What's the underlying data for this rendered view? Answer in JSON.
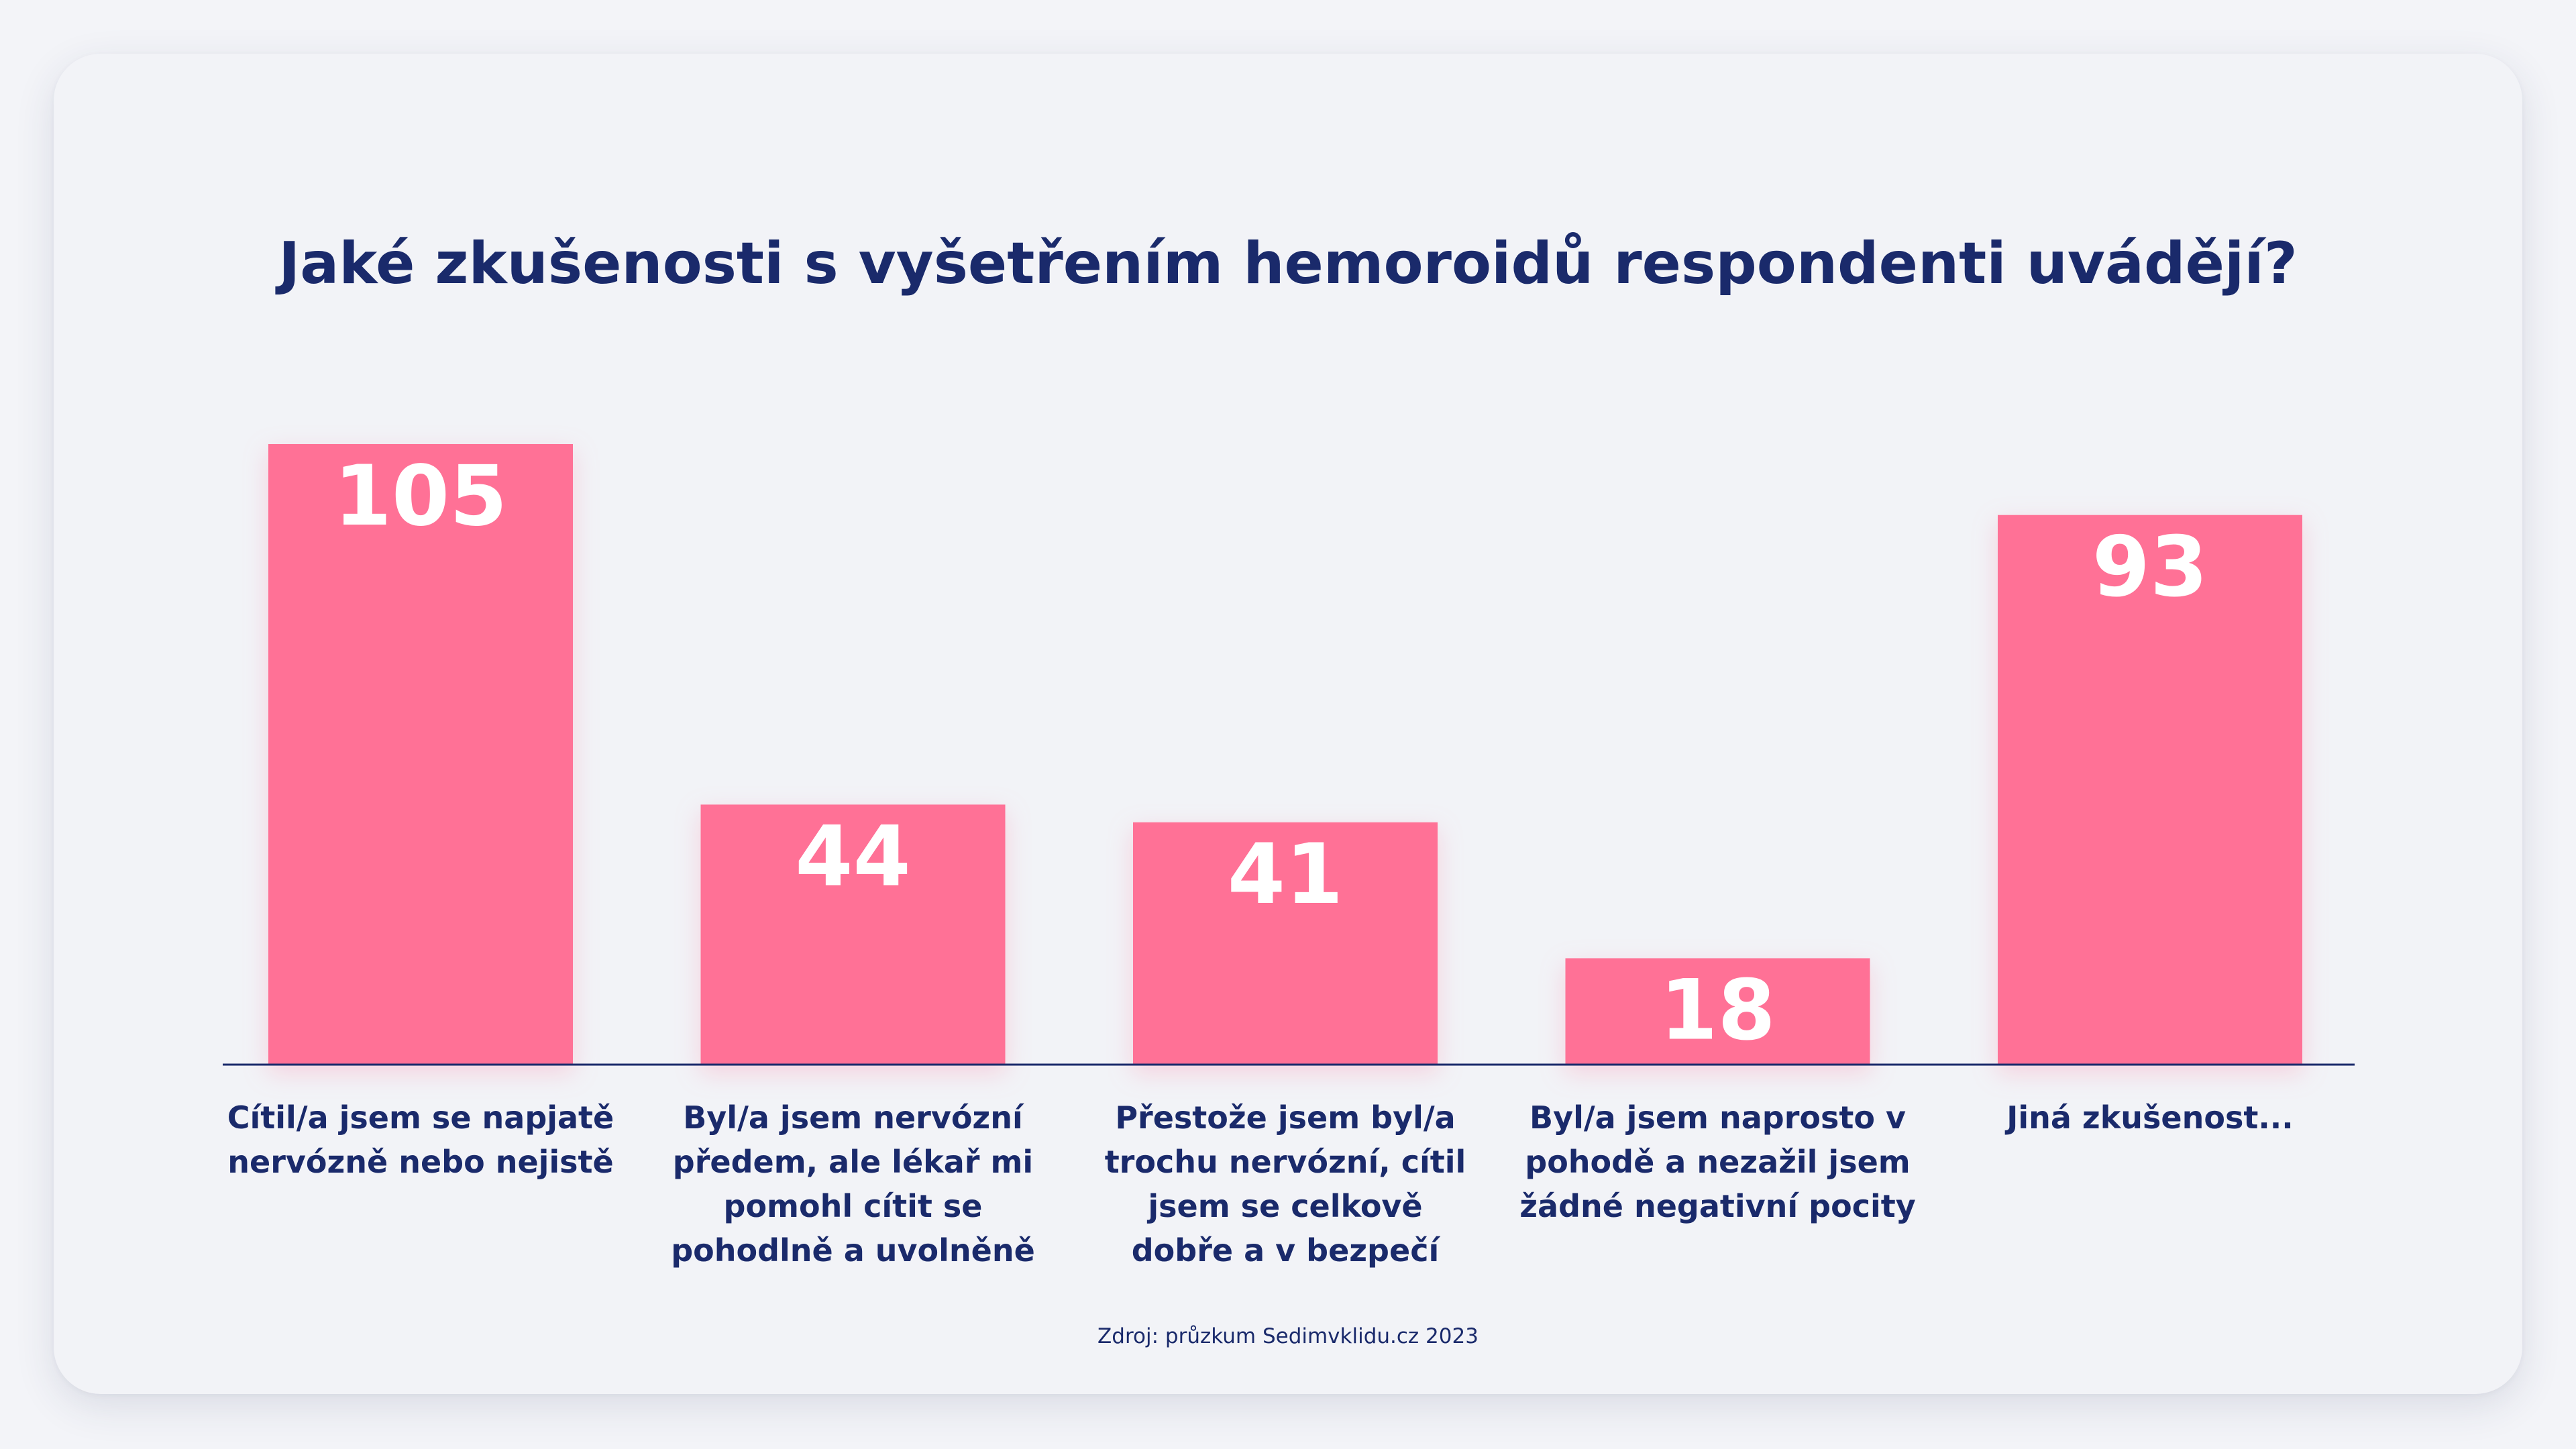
{
  "title": "Jaké zkušenosti s vyšetřením hemoroidů respondenti uvádějí?",
  "source": "Zdroj: průzkum Sedimvklidu.cz 2023",
  "colors": {
    "bar": "#ff7196",
    "text": "#1a2a6b",
    "background": "#f2f3f7",
    "value_label": "#ffffff"
  },
  "chart_data": {
    "type": "bar",
    "title": "Jaké zkušenosti s vyšetřením hemoroidů respondenti uvádějí?",
    "xlabel": "",
    "ylabel": "",
    "grid": false,
    "legend": "none",
    "ylim": [
      0,
      105
    ],
    "categories": [
      [
        "Cítil/a jsem se napjatě",
        "nervózně nebo nejistě"
      ],
      [
        "Byl/a jsem nervózní",
        "předem, ale lékař mi",
        "pomohl cítit se",
        "pohodlně a uvolněně"
      ],
      [
        "Přestože jsem byl/a",
        "trochu nervózní, cítil",
        "jsem se celkově",
        "dobře a v bezpečí"
      ],
      [
        "Byl/a jsem naprosto v",
        "pohodě a nezažil jsem",
        "žádné negativní pocity"
      ],
      [
        "Jiná zkušenost..."
      ]
    ],
    "values": [
      105,
      44,
      41,
      18,
      93
    ]
  }
}
